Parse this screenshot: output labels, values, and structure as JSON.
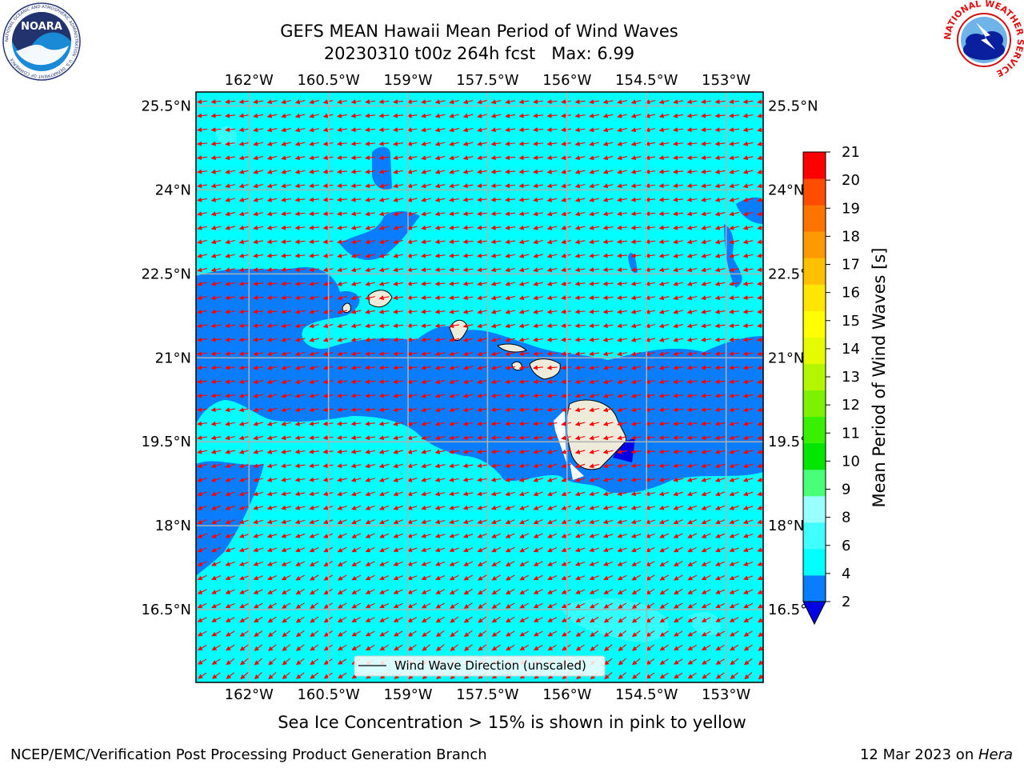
{
  "title": {
    "line1": "GEFS MEAN Hawaii Mean Period of Wind Waves",
    "line2": "20230310 t00z 264h fcst   Max: 6.99"
  },
  "logos": {
    "left": {
      "name": "NOARA",
      "ring_text": "NATIONAL OCEANIC AND ATMOSPHERIC ADMINISTRATION · U.S. DEPARTMENT OF COMMERCE"
    },
    "right": {
      "ring_text": "NATIONAL WEATHER SERVICE"
    }
  },
  "map": {
    "lon_labels": [
      "162°W",
      "160.5°W",
      "159°W",
      "157.5°W",
      "156°W",
      "154.5°W",
      "153°W"
    ],
    "lon_values": [
      -162,
      -160.5,
      -159,
      -157.5,
      -156,
      -154.5,
      -153
    ],
    "lat_labels": [
      "25.5°N",
      "24°N",
      "22.5°N",
      "21°N",
      "19.5°N",
      "18°N",
      "16.5°N"
    ],
    "lat_values": [
      25.5,
      24,
      22.5,
      21,
      19.5,
      18,
      16.5
    ],
    "extent": {
      "lon_min": -163,
      "lon_max": -152.3,
      "lat_min": 15.2,
      "lat_max": 25.75
    },
    "legend_label": "Wind Wave Direction (unscaled)",
    "colors": {
      "period_2_4": "#0a7dff",
      "period_4_6": "#00ffff",
      "period_below_2": "#0000e6",
      "land": "#efebdb",
      "arrow": "#ff0000",
      "grid": "#b0b0b0"
    }
  },
  "colorbar": {
    "label": "Mean Period of Wind Waves [s]",
    "ticks": [
      "21",
      "20",
      "19",
      "18",
      "17",
      "16",
      "15",
      "14",
      "13",
      "12",
      "11",
      "10",
      "9",
      "8",
      "6",
      "4",
      "2"
    ],
    "levels": [
      2,
      4,
      6,
      8,
      9,
      10,
      11,
      12,
      13,
      14,
      15,
      16,
      17,
      18,
      19,
      20,
      21
    ],
    "colors": [
      "#0a7dff",
      "#00ffff",
      "#40ffff",
      "#99ffff",
      "#49ff78",
      "#00e600",
      "#38f000",
      "#7cf200",
      "#b4f500",
      "#e6fa00",
      "#ffff00",
      "#ffe600",
      "#ffc000",
      "#ff9900",
      "#ff7300",
      "#ff4d00",
      "#ff0000"
    ],
    "under_color": "#0000e6"
  },
  "footnote": "Sea Ice Concentration > 15% is shown in pink to yellow",
  "credit": "NCEP/EMC/Verification Post Processing Product Generation Branch",
  "stamp": {
    "date": "12 Mar 2023 on ",
    "host": "Hera"
  }
}
